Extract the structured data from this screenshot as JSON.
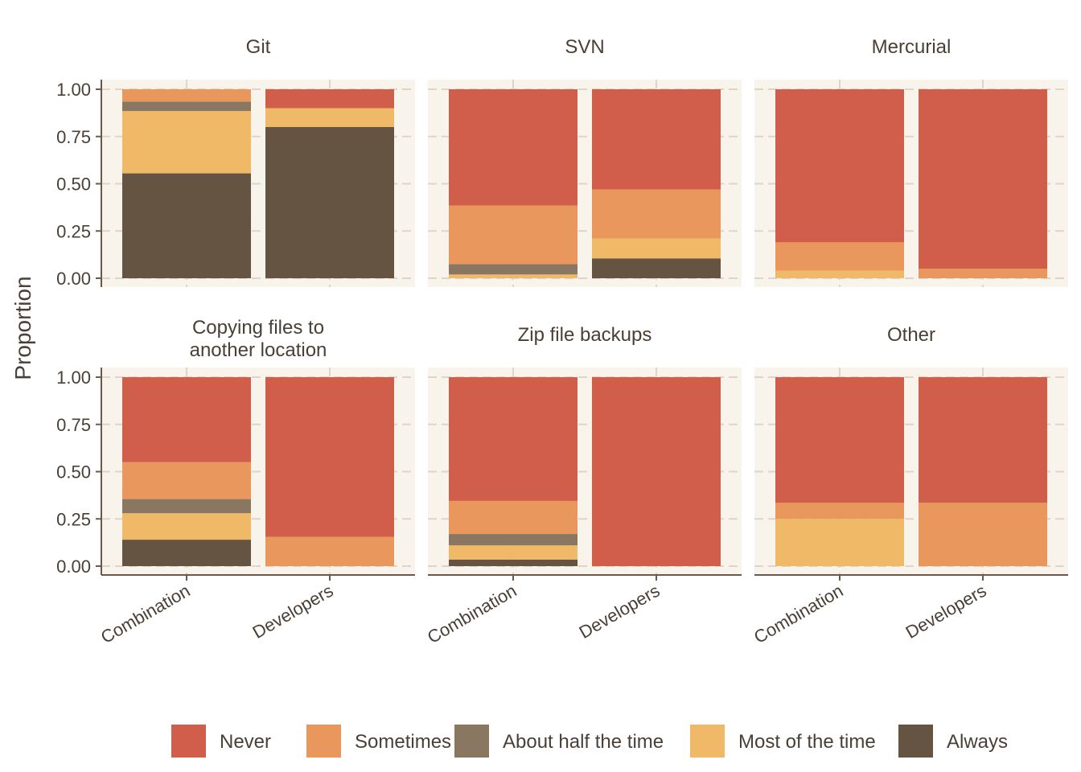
{
  "chart_data": {
    "type": "bar",
    "stacked": true,
    "ylabel": "Proportion",
    "xlabel": "",
    "ylim": [
      0,
      1
    ],
    "yticks": [
      "0.00",
      "0.25",
      "0.50",
      "0.75",
      "1.00"
    ],
    "categories": [
      "Combination",
      "Developers"
    ],
    "grid": true,
    "legend_position": "bottom",
    "series_order": [
      "Always",
      "Most of the time",
      "About half the time",
      "Sometimes",
      "Never"
    ],
    "legend": [
      {
        "name": "Never",
        "color": "#d05e4b"
      },
      {
        "name": "Sometimes",
        "color": "#e9975c"
      },
      {
        "name": "About half the time",
        "color": "#8a7761"
      },
      {
        "name": "Most of the time",
        "color": "#efb968"
      },
      {
        "name": "Always",
        "color": "#655441"
      }
    ],
    "panels": [
      {
        "title": "Git",
        "bars": {
          "Combination": {
            "Always": 0.555,
            "Most of the time": 0.33,
            "About half the time": 0.05,
            "Sometimes": 0.065,
            "Never": 0.0
          },
          "Developers": {
            "Always": 0.8,
            "Most of the time": 0.1,
            "About half the time": 0.0,
            "Sometimes": 0.0,
            "Never": 0.1
          }
        }
      },
      {
        "title": "SVN",
        "bars": {
          "Combination": {
            "Always": 0.0,
            "Most of the time": 0.02,
            "About half the time": 0.055,
            "Sometimes": 0.31,
            "Never": 0.615
          },
          "Developers": {
            "Always": 0.105,
            "Most of the time": 0.105,
            "About half the time": 0.0,
            "Sometimes": 0.26,
            "Never": 0.53
          }
        }
      },
      {
        "title": "Mercurial",
        "bars": {
          "Combination": {
            "Always": 0.0,
            "Most of the time": 0.04,
            "About half the time": 0.0,
            "Sometimes": 0.15,
            "Never": 0.81
          },
          "Developers": {
            "Always": 0.0,
            "Most of the time": 0.0,
            "About half the time": 0.0,
            "Sometimes": 0.05,
            "Never": 0.95
          }
        }
      },
      {
        "title": "Copying files to\nanother location",
        "bars": {
          "Combination": {
            "Always": 0.14,
            "Most of the time": 0.14,
            "About half the time": 0.075,
            "Sometimes": 0.195,
            "Never": 0.45
          },
          "Developers": {
            "Always": 0.0,
            "Most of the time": 0.0,
            "About half the time": 0.0,
            "Sometimes": 0.155,
            "Never": 0.845
          }
        }
      },
      {
        "title": "Zip file backups",
        "bars": {
          "Combination": {
            "Always": 0.035,
            "Most of the time": 0.075,
            "About half the time": 0.06,
            "Sometimes": 0.175,
            "Never": 0.655
          },
          "Developers": {
            "Always": 0.0,
            "Most of the time": 0.0,
            "About half the time": 0.0,
            "Sometimes": 0.0,
            "Never": 1.0
          }
        }
      },
      {
        "title": "Other",
        "bars": {
          "Combination": {
            "Always": 0.0,
            "Most of the time": 0.25,
            "About half the time": 0.0,
            "Sometimes": 0.085,
            "Never": 0.665
          },
          "Developers": {
            "Always": 0.0,
            "Most of the time": 0.0,
            "About half the time": 0.0,
            "Sometimes": 0.335,
            "Never": 0.665
          }
        }
      }
    ]
  }
}
